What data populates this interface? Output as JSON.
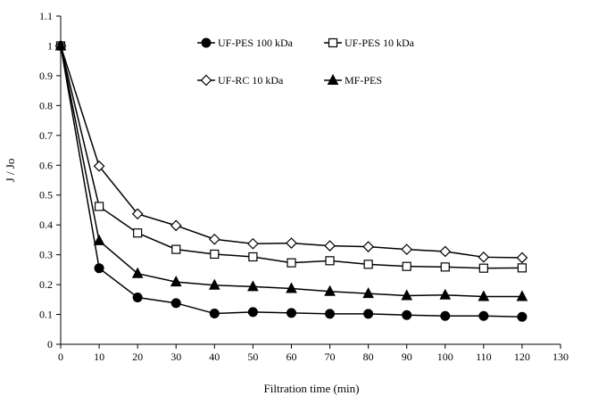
{
  "chart_data": {
    "type": "line",
    "title": "",
    "xlabel": "Filtration time (min)",
    "ylabel": "J / Jo",
    "xlim": [
      0,
      130
    ],
    "ylim": [
      0,
      1.1
    ],
    "xticks": [
      0,
      10,
      20,
      30,
      40,
      50,
      60,
      70,
      80,
      90,
      100,
      110,
      120,
      130
    ],
    "yticks": [
      "0",
      "0.1",
      "0.2",
      "0.3",
      "0.4",
      "0.5",
      "0.6",
      "0.7",
      "0.8",
      "0.9",
      "1",
      "1.1"
    ],
    "grid": false,
    "legend_position": "top-right",
    "x": [
      0,
      10,
      20,
      30,
      40,
      50,
      60,
      70,
      80,
      90,
      100,
      110,
      120
    ],
    "series": [
      {
        "name": "UF-PES 100 kDa",
        "marker": "filled-circle",
        "color": "#000000",
        "values": [
          1.0,
          0.255,
          0.157,
          0.138,
          0.103,
          0.108,
          0.105,
          0.102,
          0.102,
          0.098,
          0.095,
          0.095,
          0.092
        ]
      },
      {
        "name": "UF-PES 10 kDa",
        "marker": "open-square",
        "color": "#000000",
        "values": [
          1.0,
          0.462,
          0.373,
          0.318,
          0.302,
          0.293,
          0.273,
          0.28,
          0.268,
          0.261,
          0.259,
          0.255,
          0.256
        ]
      },
      {
        "name": "UF-RC 10 kDa",
        "marker": "open-diamond",
        "color": "#000000",
        "values": [
          1.0,
          0.597,
          0.437,
          0.398,
          0.352,
          0.337,
          0.339,
          0.33,
          0.327,
          0.318,
          0.311,
          0.292,
          0.29
        ]
      },
      {
        "name": "MF-PES",
        "marker": "filled-triangle",
        "color": "#000000",
        "values": [
          1.0,
          0.347,
          0.237,
          0.209,
          0.198,
          0.193,
          0.187,
          0.177,
          0.17,
          0.163,
          0.165,
          0.16,
          0.16
        ]
      }
    ]
  }
}
